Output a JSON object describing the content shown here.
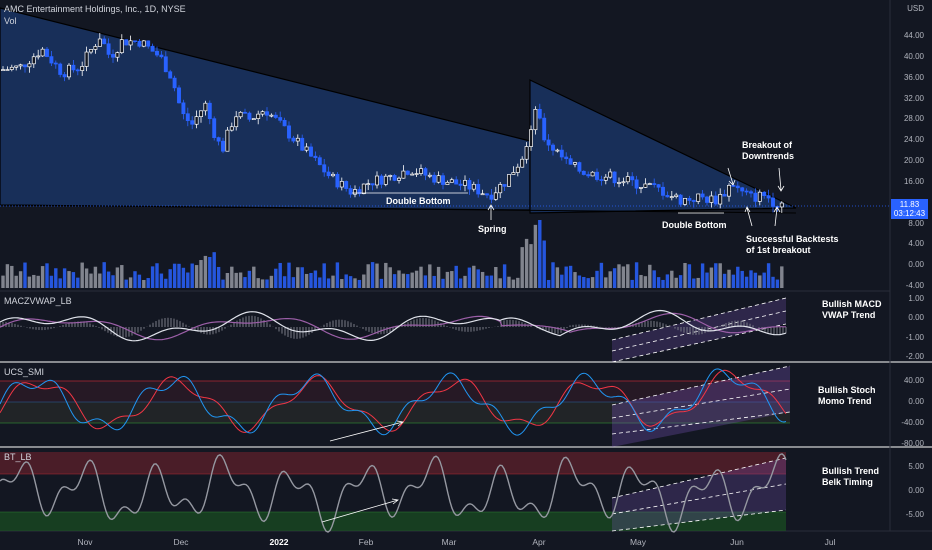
{
  "header": {
    "symbol_line": "AMC Entertainment Holdings, Inc., 1D, NYSE",
    "sub": "Vol",
    "currency": "USD"
  },
  "price_axis": [
    "44.00",
    "40.00",
    "36.00",
    "32.00",
    "28.00",
    "24.00",
    "20.00",
    "16.00",
    "12.00",
    "8.00",
    "4.00",
    "0.00",
    "-4.00"
  ],
  "price_tag": {
    "value": "11.83",
    "countdown": "03:12:43"
  },
  "indicators": [
    {
      "title": "MACZVWAP_LB",
      "axis": [
        "1.00",
        "0.00",
        "-1.00",
        "-2.00"
      ],
      "note": [
        "Bullish MACD",
        "VWAP Trend"
      ]
    },
    {
      "title": "UCS_SMI",
      "axis": [
        "40.00",
        "0.00",
        "-40.00",
        "-80.00"
      ],
      "note": [
        "Bullish Stoch",
        "Momo Trend"
      ]
    },
    {
      "title": "BT_LB",
      "axis": [
        "5.00",
        "0.00",
        "-5.00"
      ],
      "note": [
        "Bullish Trend",
        "Belk Timing"
      ]
    }
  ],
  "annotations": {
    "double_bottom_1": "Double Bottom",
    "spring": "Spring",
    "double_bottom_2": "Double Bottom",
    "breakout": [
      "Breakout of",
      "Downtrends"
    ],
    "backtests": [
      "Successful Backtests",
      "of 1st breakout"
    ]
  },
  "time_axis": [
    "Nov",
    "Dec",
    "2022",
    "Feb",
    "Mar",
    "Apr",
    "May",
    "Jun",
    "Jul"
  ],
  "colors": {
    "bg": "#131722",
    "up": "#ffffff",
    "down": "#2962ff",
    "volume_up": "#9598a1",
    "volume_down": "#2962ff",
    "macd": "#e0e3eb",
    "signal": "#9c5fa8",
    "smi_k": "#2196f3",
    "smi_d": "#f23645",
    "bt": "#9598a1"
  },
  "chart_data": {
    "type": "line",
    "title": "AMC Entertainment Holdings, Inc., 1D, NYSE",
    "x": [
      "Nov",
      "Dec",
      "2022",
      "Feb",
      "Mar",
      "Apr",
      "May",
      "Jun"
    ],
    "series": [
      {
        "values": [
          40,
          36,
          24,
          14,
          17,
          26,
          13,
          12
        ]
      }
    ],
    "ylabel": "USD",
    "ylim": [
      -4,
      46
    ],
    "grid": false
  }
}
